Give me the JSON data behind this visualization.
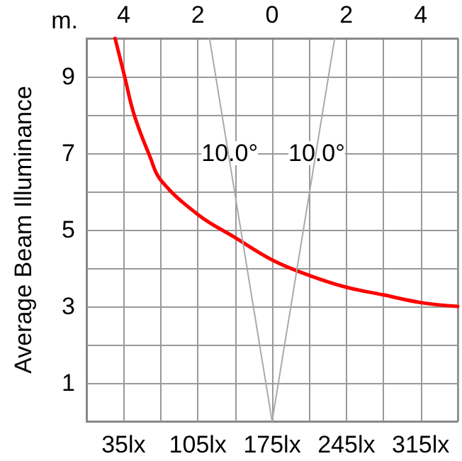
{
  "chart_data": {
    "type": "line",
    "ylabel": "Average Beam Illuminance",
    "x2label": "m.",
    "x": [
      27,
      36,
      45,
      60,
      70,
      105,
      140,
      176,
      211,
      245,
      280,
      315,
      350
    ],
    "series": [
      {
        "color": "#ff0000",
        "values": [
          10,
          9,
          8,
          6.9,
          6.3,
          5.4,
          4.8,
          4.2,
          3.8,
          3.5,
          3.3,
          3.1,
          3.0
        ]
      },
      {
        "color": "#aaaaaa",
        "x": [
          175,
          116
        ],
        "values": [
          0,
          10
        ]
      },
      {
        "color": "#aaaaaa",
        "x": [
          175,
          234
        ],
        "values": [
          0,
          10
        ]
      }
    ],
    "annotations": [
      {
        "text": "10.0°",
        "x": 135,
        "y": 7
      },
      {
        "text": "10.0°",
        "x": 217,
        "y": 7
      }
    ],
    "xlim": [
      0,
      350
    ],
    "xticks": [
      {
        "value": 0,
        "label": null
      },
      {
        "value": 35,
        "label": "35lx"
      },
      {
        "value": 70,
        "label": null
      },
      {
        "value": 105,
        "label": "105lx"
      },
      {
        "value": 140,
        "label": null
      },
      {
        "value": 175,
        "label": "175lx"
      },
      {
        "value": 210,
        "label": null
      },
      {
        "value": 245,
        "label": "245lx"
      },
      {
        "value": 280,
        "label": null
      },
      {
        "value": 315,
        "label": "315lx"
      },
      {
        "value": 350,
        "label": null
      }
    ],
    "x2lim": [
      -5,
      5
    ],
    "x2ticks": [
      {
        "value": -5,
        "label": null
      },
      {
        "value": -4,
        "label": "4"
      },
      {
        "value": -3,
        "label": null
      },
      {
        "value": -2,
        "label": "2"
      },
      {
        "value": -1,
        "label": null
      },
      0,
      {
        "value": 1,
        "label": null
      },
      2,
      {
        "value": 3,
        "label": null
      },
      4,
      {
        "value": 5,
        "label": null
      }
    ],
    "ylim": [
      0,
      10
    ],
    "yticks": [
      {
        "value": 0,
        "label": null
      },
      1,
      {
        "value": 2,
        "label": null
      },
      3,
      {
        "value": 4,
        "label": null
      },
      5,
      {
        "value": 6,
        "label": null
      },
      7,
      {
        "value": 8,
        "label": null
      },
      9,
      {
        "value": 10,
        "label": null
      }
    ],
    "grid": true,
    "marker": "none",
    "line_style": "solid"
  }
}
